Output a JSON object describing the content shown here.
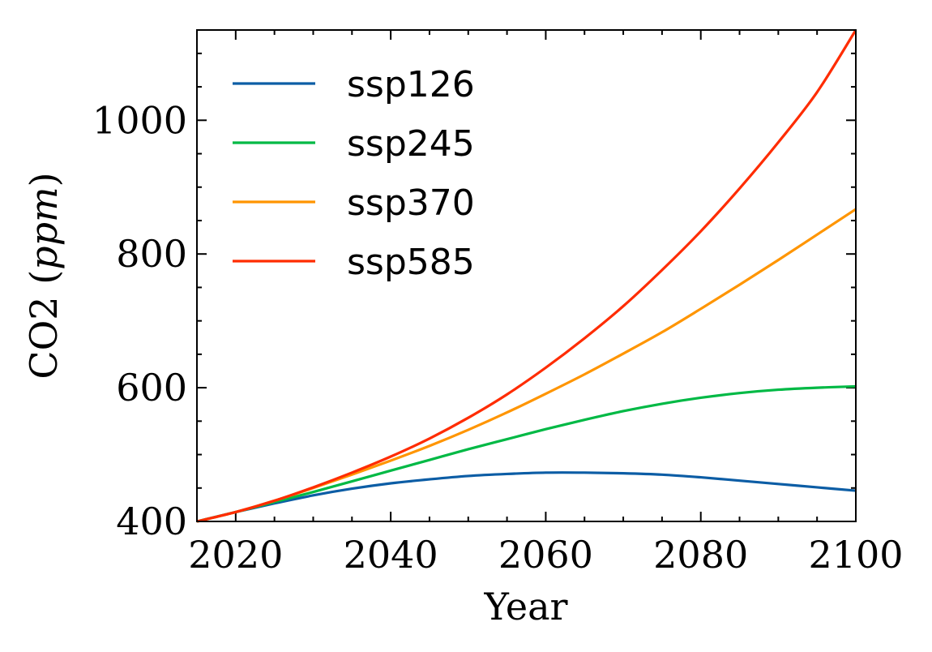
{
  "chart_data": {
    "type": "line",
    "xlabel": "Year",
    "ylabel_main": "CO2",
    "ylabel_unit": "ppm",
    "xlim": [
      2015,
      2100
    ],
    "ylim": [
      400,
      1135
    ],
    "xticks": [
      2020,
      2040,
      2060,
      2080,
      2100
    ],
    "xticks_minor_step": 5,
    "yticks": [
      400,
      600,
      800,
      1000
    ],
    "yticks_minor_step": 50,
    "grid": false,
    "legend_position": "top-left",
    "series": [
      {
        "name": "ssp126",
        "color": "#0C5DA5",
        "x": [
          2015,
          2020,
          2025,
          2030,
          2035,
          2040,
          2045,
          2050,
          2055,
          2060,
          2065,
          2070,
          2075,
          2080,
          2085,
          2090,
          2095,
          2100
        ],
        "values": [
          400,
          414,
          427,
          439,
          449,
          457,
          463,
          468,
          471,
          473,
          473,
          472,
          470,
          466,
          461,
          456,
          451,
          446
        ]
      },
      {
        "name": "ssp245",
        "color": "#00B945",
        "x": [
          2015,
          2020,
          2025,
          2030,
          2035,
          2040,
          2045,
          2050,
          2055,
          2060,
          2065,
          2070,
          2075,
          2080,
          2085,
          2090,
          2095,
          2100
        ],
        "values": [
          400,
          414,
          429,
          444,
          460,
          476,
          492,
          508,
          523,
          538,
          552,
          565,
          576,
          585,
          592,
          597,
          600,
          602
        ]
      },
      {
        "name": "ssp370",
        "color": "#FF9500",
        "x": [
          2015,
          2020,
          2025,
          2030,
          2035,
          2040,
          2045,
          2050,
          2055,
          2060,
          2065,
          2070,
          2075,
          2080,
          2085,
          2090,
          2095,
          2100
        ],
        "values": [
          400,
          414,
          431,
          450,
          470,
          491,
          513,
          537,
          563,
          591,
          620,
          651,
          683,
          718,
          754,
          791,
          829,
          867
        ]
      },
      {
        "name": "ssp585",
        "color": "#FF2C00",
        "x": [
          2015,
          2020,
          2025,
          2030,
          2035,
          2040,
          2045,
          2050,
          2055,
          2060,
          2065,
          2070,
          2075,
          2080,
          2085,
          2090,
          2095,
          2100
        ],
        "values": [
          400,
          414,
          431,
          451,
          473,
          497,
          524,
          555,
          590,
          630,
          674,
          722,
          776,
          834,
          898,
          967,
          1042,
          1135
        ]
      }
    ]
  }
}
